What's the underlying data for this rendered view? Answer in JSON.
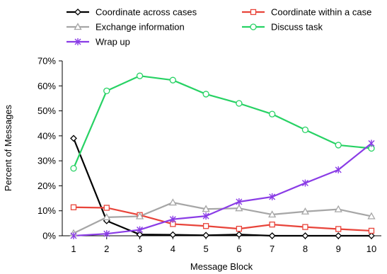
{
  "chart_data": {
    "type": "line",
    "title": "",
    "xlabel": "Message Block",
    "ylabel": "Percent of Messages",
    "x": [
      1,
      2,
      3,
      4,
      5,
      6,
      7,
      8,
      9,
      10
    ],
    "x_tick_labels": [
      "1",
      "2",
      "3",
      "4",
      "5",
      "6",
      "7",
      "8",
      "9",
      "10"
    ],
    "ylim": [
      0,
      70
    ],
    "y_ticks": [
      0,
      10,
      20,
      30,
      40,
      50,
      60,
      70
    ],
    "y_tick_labels": [
      "0%",
      "10%",
      "20%",
      "30%",
      "40%",
      "50%",
      "60%",
      "70%"
    ],
    "y_unit": "percent",
    "grid": false,
    "legend_position": "top",
    "series": [
      {
        "name": "Coordinate across cases",
        "color": "#000000",
        "marker": "diamond",
        "values": [
          39,
          6,
          0.5,
          0.4,
          0.2,
          0.5,
          0,
          0,
          0,
          0
        ]
      },
      {
        "name": "Coordinate within a case",
        "color": "#e8443a",
        "marker": "square",
        "values": [
          11.4,
          11.2,
          8.3,
          4.7,
          3.9,
          2.8,
          4.5,
          3.5,
          2.7,
          2
        ]
      },
      {
        "name": "Exchange information",
        "color": "#a6a6a6",
        "marker": "triangle",
        "values": [
          1,
          7.4,
          7.8,
          13.3,
          10.7,
          11,
          8.5,
          9.7,
          10.6,
          7.8
        ]
      },
      {
        "name": "Discuss task",
        "color": "#27d264",
        "marker": "circle",
        "values": [
          27,
          58,
          64,
          62.3,
          56.7,
          53,
          48.7,
          42.4,
          36.3,
          35
        ]
      },
      {
        "name": "Wrap up",
        "color": "#8a3ce6",
        "marker": "star",
        "values": [
          0,
          0.8,
          2.4,
          6.6,
          7.9,
          13.6,
          15.6,
          21.1,
          26.4,
          37
        ]
      }
    ]
  }
}
